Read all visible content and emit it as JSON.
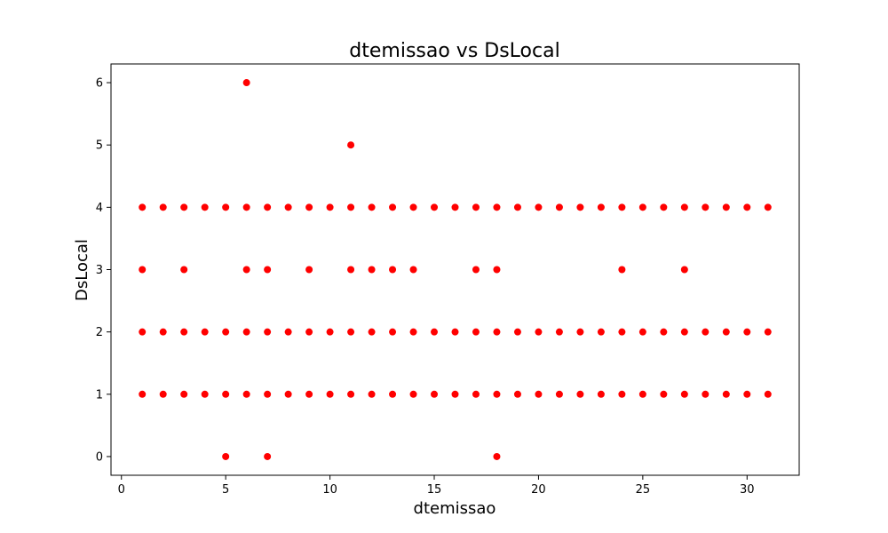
{
  "chart_data": {
    "type": "scatter",
    "title": "dtemissao vs DsLocal",
    "xlabel": "dtemissao",
    "ylabel": "DsLocal",
    "xlim": [
      -0.5,
      32.5
    ],
    "ylim": [
      -0.3,
      6.3
    ],
    "xticks": [
      0,
      5,
      10,
      15,
      20,
      25,
      30
    ],
    "yticks": [
      0,
      1,
      2,
      3,
      4,
      5,
      6
    ],
    "grid": false,
    "legend": "none",
    "marker_color": "#ff0000",
    "series": [
      {
        "points": [
          [
            6,
            6
          ],
          [
            11,
            5
          ],
          [
            1,
            4
          ],
          [
            2,
            4
          ],
          [
            3,
            4
          ],
          [
            4,
            4
          ],
          [
            5,
            4
          ],
          [
            6,
            4
          ],
          [
            7,
            4
          ],
          [
            8,
            4
          ],
          [
            9,
            4
          ],
          [
            10,
            4
          ],
          [
            11,
            4
          ],
          [
            12,
            4
          ],
          [
            13,
            4
          ],
          [
            14,
            4
          ],
          [
            15,
            4
          ],
          [
            16,
            4
          ],
          [
            17,
            4
          ],
          [
            18,
            4
          ],
          [
            19,
            4
          ],
          [
            20,
            4
          ],
          [
            21,
            4
          ],
          [
            22,
            4
          ],
          [
            23,
            4
          ],
          [
            24,
            4
          ],
          [
            25,
            4
          ],
          [
            26,
            4
          ],
          [
            27,
            4
          ],
          [
            28,
            4
          ],
          [
            29,
            4
          ],
          [
            30,
            4
          ],
          [
            31,
            4
          ],
          [
            1,
            3
          ],
          [
            3,
            3
          ],
          [
            6,
            3
          ],
          [
            7,
            3
          ],
          [
            9,
            3
          ],
          [
            11,
            3
          ],
          [
            12,
            3
          ],
          [
            13,
            3
          ],
          [
            14,
            3
          ],
          [
            17,
            3
          ],
          [
            18,
            3
          ],
          [
            24,
            3
          ],
          [
            27,
            3
          ],
          [
            1,
            2
          ],
          [
            2,
            2
          ],
          [
            3,
            2
          ],
          [
            4,
            2
          ],
          [
            5,
            2
          ],
          [
            6,
            2
          ],
          [
            7,
            2
          ],
          [
            8,
            2
          ],
          [
            9,
            2
          ],
          [
            10,
            2
          ],
          [
            11,
            2
          ],
          [
            12,
            2
          ],
          [
            13,
            2
          ],
          [
            14,
            2
          ],
          [
            15,
            2
          ],
          [
            16,
            2
          ],
          [
            17,
            2
          ],
          [
            18,
            2
          ],
          [
            19,
            2
          ],
          [
            20,
            2
          ],
          [
            21,
            2
          ],
          [
            22,
            2
          ],
          [
            23,
            2
          ],
          [
            24,
            2
          ],
          [
            25,
            2
          ],
          [
            26,
            2
          ],
          [
            27,
            2
          ],
          [
            28,
            2
          ],
          [
            29,
            2
          ],
          [
            30,
            2
          ],
          [
            31,
            2
          ],
          [
            1,
            1
          ],
          [
            2,
            1
          ],
          [
            3,
            1
          ],
          [
            4,
            1
          ],
          [
            5,
            1
          ],
          [
            6,
            1
          ],
          [
            7,
            1
          ],
          [
            8,
            1
          ],
          [
            9,
            1
          ],
          [
            10,
            1
          ],
          [
            11,
            1
          ],
          [
            12,
            1
          ],
          [
            13,
            1
          ],
          [
            14,
            1
          ],
          [
            15,
            1
          ],
          [
            16,
            1
          ],
          [
            17,
            1
          ],
          [
            18,
            1
          ],
          [
            19,
            1
          ],
          [
            20,
            1
          ],
          [
            21,
            1
          ],
          [
            22,
            1
          ],
          [
            23,
            1
          ],
          [
            24,
            1
          ],
          [
            25,
            1
          ],
          [
            26,
            1
          ],
          [
            27,
            1
          ],
          [
            28,
            1
          ],
          [
            29,
            1
          ],
          [
            30,
            1
          ],
          [
            31,
            1
          ],
          [
            5,
            0
          ],
          [
            7,
            0
          ],
          [
            18,
            0
          ]
        ]
      }
    ]
  }
}
